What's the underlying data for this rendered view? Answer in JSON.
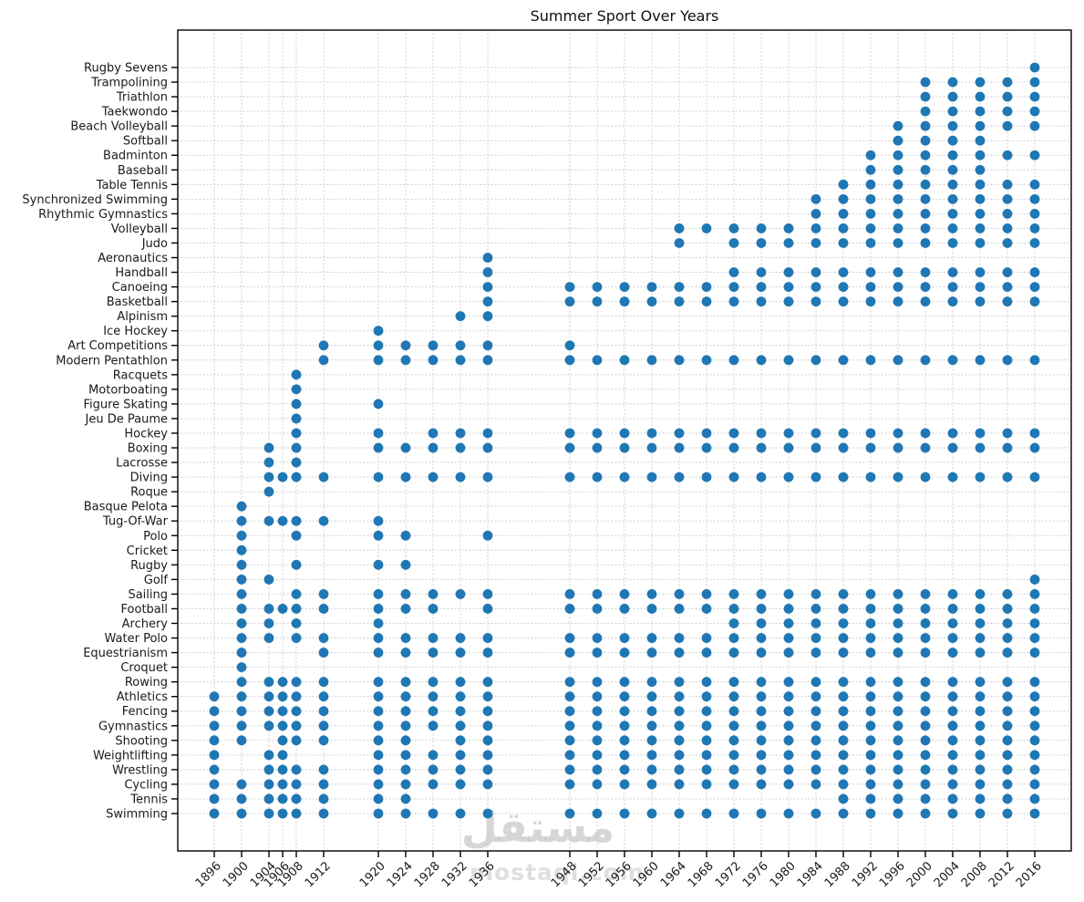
{
  "title": "Summer Sport Over Years",
  "watermark": {
    "arabic": "مستقل",
    "latin": "mostaql.com"
  },
  "colors": {
    "dot": "#1f77b4",
    "grid": "#c8c8c8",
    "axis": "#000000",
    "tick_label": "#1a1a1a",
    "title": "#111111"
  },
  "chart_data": {
    "type": "scatter",
    "title": "Summer Sport Over Years",
    "xlabel": "",
    "ylabel": "",
    "grid": true,
    "x_tick_rotation": 45,
    "x_ticks": [
      1896,
      1900,
      1904,
      1906,
      1908,
      1912,
      1920,
      1924,
      1928,
      1932,
      1936,
      1948,
      1952,
      1956,
      1960,
      1964,
      1968,
      1972,
      1976,
      1980,
      1984,
      1988,
      1992,
      1996,
      2000,
      2004,
      2008,
      2012,
      2016
    ],
    "xlim": [
      1890.7,
      2021.3
    ],
    "sports": [
      {
        "name": "Rugby Sevens",
        "years": [
          2016
        ]
      },
      {
        "name": "Trampolining",
        "years": [
          2000,
          2004,
          2008,
          2012,
          2016
        ]
      },
      {
        "name": "Triathlon",
        "years": [
          2000,
          2004,
          2008,
          2012,
          2016
        ]
      },
      {
        "name": "Taekwondo",
        "years": [
          2000,
          2004,
          2008,
          2012,
          2016
        ]
      },
      {
        "name": "Beach Volleyball",
        "years": [
          1996,
          2000,
          2004,
          2008,
          2012,
          2016
        ]
      },
      {
        "name": "Softball",
        "years": [
          1996,
          2000,
          2004,
          2008
        ]
      },
      {
        "name": "Badminton",
        "years": [
          1992,
          1996,
          2000,
          2004,
          2008,
          2012,
          2016
        ]
      },
      {
        "name": "Baseball",
        "years": [
          1992,
          1996,
          2000,
          2004,
          2008
        ]
      },
      {
        "name": "Table Tennis",
        "years": [
          1988,
          1992,
          1996,
          2000,
          2004,
          2008,
          2012,
          2016
        ]
      },
      {
        "name": "Synchronized Swimming",
        "years": [
          1984,
          1988,
          1992,
          1996,
          2000,
          2004,
          2008,
          2012,
          2016
        ]
      },
      {
        "name": "Rhythmic Gymnastics",
        "years": [
          1984,
          1988,
          1992,
          1996,
          2000,
          2004,
          2008,
          2012,
          2016
        ]
      },
      {
        "name": "Volleyball",
        "years": [
          1964,
          1968,
          1972,
          1976,
          1980,
          1984,
          1988,
          1992,
          1996,
          2000,
          2004,
          2008,
          2012,
          2016
        ]
      },
      {
        "name": "Judo",
        "years": [
          1964,
          1972,
          1976,
          1980,
          1984,
          1988,
          1992,
          1996,
          2000,
          2004,
          2008,
          2012,
          2016
        ]
      },
      {
        "name": "Aeronautics",
        "years": [
          1936
        ]
      },
      {
        "name": "Handball",
        "years": [
          1936,
          1972,
          1976,
          1980,
          1984,
          1988,
          1992,
          1996,
          2000,
          2004,
          2008,
          2012,
          2016
        ]
      },
      {
        "name": "Canoeing",
        "years": [
          1936,
          1948,
          1952,
          1956,
          1960,
          1964,
          1968,
          1972,
          1976,
          1980,
          1984,
          1988,
          1992,
          1996,
          2000,
          2004,
          2008,
          2012,
          2016
        ]
      },
      {
        "name": "Basketball",
        "years": [
          1936,
          1948,
          1952,
          1956,
          1960,
          1964,
          1968,
          1972,
          1976,
          1980,
          1984,
          1988,
          1992,
          1996,
          2000,
          2004,
          2008,
          2012,
          2016
        ]
      },
      {
        "name": "Alpinism",
        "years": [
          1932,
          1936
        ]
      },
      {
        "name": "Ice Hockey",
        "years": [
          1920
        ]
      },
      {
        "name": "Art Competitions",
        "years": [
          1912,
          1920,
          1924,
          1928,
          1932,
          1936,
          1948
        ]
      },
      {
        "name": "Modern Pentathlon",
        "years": [
          1912,
          1920,
          1924,
          1928,
          1932,
          1936,
          1948,
          1952,
          1956,
          1960,
          1964,
          1968,
          1972,
          1976,
          1980,
          1984,
          1988,
          1992,
          1996,
          2000,
          2004,
          2008,
          2012,
          2016
        ]
      },
      {
        "name": "Racquets",
        "years": [
          1908
        ]
      },
      {
        "name": "Motorboating",
        "years": [
          1908
        ]
      },
      {
        "name": "Figure Skating",
        "years": [
          1908,
          1920
        ]
      },
      {
        "name": "Jeu De Paume",
        "years": [
          1908
        ]
      },
      {
        "name": "Hockey",
        "years": [
          1908,
          1920,
          1928,
          1932,
          1936,
          1948,
          1952,
          1956,
          1960,
          1964,
          1968,
          1972,
          1976,
          1980,
          1984,
          1988,
          1992,
          1996,
          2000,
          2004,
          2008,
          2012,
          2016
        ]
      },
      {
        "name": "Boxing",
        "years": [
          1904,
          1908,
          1920,
          1924,
          1928,
          1932,
          1936,
          1948,
          1952,
          1956,
          1960,
          1964,
          1968,
          1972,
          1976,
          1980,
          1984,
          1988,
          1992,
          1996,
          2000,
          2004,
          2008,
          2012,
          2016
        ]
      },
      {
        "name": "Lacrosse",
        "years": [
          1904,
          1908
        ]
      },
      {
        "name": "Diving",
        "years": [
          1904,
          1906,
          1908,
          1912,
          1920,
          1924,
          1928,
          1932,
          1936,
          1948,
          1952,
          1956,
          1960,
          1964,
          1968,
          1972,
          1976,
          1980,
          1984,
          1988,
          1992,
          1996,
          2000,
          2004,
          2008,
          2012,
          2016
        ]
      },
      {
        "name": "Roque",
        "years": [
          1904
        ]
      },
      {
        "name": "Basque Pelota",
        "years": [
          1900
        ]
      },
      {
        "name": "Tug-Of-War",
        "years": [
          1900,
          1904,
          1906,
          1908,
          1912,
          1920
        ]
      },
      {
        "name": "Polo",
        "years": [
          1900,
          1908,
          1920,
          1924,
          1936
        ]
      },
      {
        "name": "Cricket",
        "years": [
          1900
        ]
      },
      {
        "name": "Rugby",
        "years": [
          1900,
          1908,
          1920,
          1924
        ]
      },
      {
        "name": "Golf",
        "years": [
          1900,
          1904,
          2016
        ]
      },
      {
        "name": "Sailing",
        "years": [
          1900,
          1908,
          1912,
          1920,
          1924,
          1928,
          1932,
          1936,
          1948,
          1952,
          1956,
          1960,
          1964,
          1968,
          1972,
          1976,
          1980,
          1984,
          1988,
          1992,
          1996,
          2000,
          2004,
          2008,
          2012,
          2016
        ]
      },
      {
        "name": "Football",
        "years": [
          1900,
          1904,
          1906,
          1908,
          1912,
          1920,
          1924,
          1928,
          1936,
          1948,
          1952,
          1956,
          1960,
          1964,
          1968,
          1972,
          1976,
          1980,
          1984,
          1988,
          1992,
          1996,
          2000,
          2004,
          2008,
          2012,
          2016
        ]
      },
      {
        "name": "Archery",
        "years": [
          1900,
          1904,
          1908,
          1920,
          1972,
          1976,
          1980,
          1984,
          1988,
          1992,
          1996,
          2000,
          2004,
          2008,
          2012,
          2016
        ]
      },
      {
        "name": "Water Polo",
        "years": [
          1900,
          1904,
          1908,
          1912,
          1920,
          1924,
          1928,
          1932,
          1936,
          1948,
          1952,
          1956,
          1960,
          1964,
          1968,
          1972,
          1976,
          1980,
          1984,
          1988,
          1992,
          1996,
          2000,
          2004,
          2008,
          2012,
          2016
        ]
      },
      {
        "name": "Equestrianism",
        "years": [
          1900,
          1912,
          1920,
          1924,
          1928,
          1932,
          1936,
          1948,
          1952,
          1956,
          1960,
          1964,
          1968,
          1972,
          1976,
          1980,
          1984,
          1988,
          1992,
          1996,
          2000,
          2004,
          2008,
          2012,
          2016
        ]
      },
      {
        "name": "Croquet",
        "years": [
          1900
        ]
      },
      {
        "name": "Rowing",
        "years": [
          1900,
          1904,
          1906,
          1908,
          1912,
          1920,
          1924,
          1928,
          1932,
          1936,
          1948,
          1952,
          1956,
          1960,
          1964,
          1968,
          1972,
          1976,
          1980,
          1984,
          1988,
          1992,
          1996,
          2000,
          2004,
          2008,
          2012,
          2016
        ]
      },
      {
        "name": "Athletics",
        "years": [
          1896,
          1900,
          1904,
          1906,
          1908,
          1912,
          1920,
          1924,
          1928,
          1932,
          1936,
          1948,
          1952,
          1956,
          1960,
          1964,
          1968,
          1972,
          1976,
          1980,
          1984,
          1988,
          1992,
          1996,
          2000,
          2004,
          2008,
          2012,
          2016
        ]
      },
      {
        "name": "Fencing",
        "years": [
          1896,
          1900,
          1904,
          1906,
          1908,
          1912,
          1920,
          1924,
          1928,
          1932,
          1936,
          1948,
          1952,
          1956,
          1960,
          1964,
          1968,
          1972,
          1976,
          1980,
          1984,
          1988,
          1992,
          1996,
          2000,
          2004,
          2008,
          2012,
          2016
        ]
      },
      {
        "name": "Gymnastics",
        "years": [
          1896,
          1900,
          1904,
          1906,
          1908,
          1912,
          1920,
          1924,
          1928,
          1932,
          1936,
          1948,
          1952,
          1956,
          1960,
          1964,
          1968,
          1972,
          1976,
          1980,
          1984,
          1988,
          1992,
          1996,
          2000,
          2004,
          2008,
          2012,
          2016
        ]
      },
      {
        "name": "Shooting",
        "years": [
          1896,
          1900,
          1906,
          1908,
          1912,
          1920,
          1924,
          1932,
          1936,
          1948,
          1952,
          1956,
          1960,
          1964,
          1968,
          1972,
          1976,
          1980,
          1984,
          1988,
          1992,
          1996,
          2000,
          2004,
          2008,
          2012,
          2016
        ]
      },
      {
        "name": "Weightlifting",
        "years": [
          1896,
          1904,
          1906,
          1920,
          1924,
          1928,
          1932,
          1936,
          1948,
          1952,
          1956,
          1960,
          1964,
          1968,
          1972,
          1976,
          1980,
          1984,
          1988,
          1992,
          1996,
          2000,
          2004,
          2008,
          2012,
          2016
        ]
      },
      {
        "name": "Wrestling",
        "years": [
          1896,
          1904,
          1906,
          1908,
          1912,
          1920,
          1924,
          1928,
          1932,
          1936,
          1948,
          1952,
          1956,
          1960,
          1964,
          1968,
          1972,
          1976,
          1980,
          1984,
          1988,
          1992,
          1996,
          2000,
          2004,
          2008,
          2012,
          2016
        ]
      },
      {
        "name": "Cycling",
        "years": [
          1896,
          1900,
          1904,
          1906,
          1908,
          1912,
          1920,
          1924,
          1928,
          1932,
          1936,
          1948,
          1952,
          1956,
          1960,
          1964,
          1968,
          1972,
          1976,
          1980,
          1984,
          1988,
          1992,
          1996,
          2000,
          2004,
          2008,
          2012,
          2016
        ]
      },
      {
        "name": "Tennis",
        "years": [
          1896,
          1900,
          1904,
          1906,
          1908,
          1912,
          1920,
          1924,
          1988,
          1992,
          1996,
          2000,
          2004,
          2008,
          2012,
          2016
        ]
      },
      {
        "name": "Swimming",
        "years": [
          1896,
          1900,
          1904,
          1906,
          1908,
          1912,
          1920,
          1924,
          1928,
          1932,
          1936,
          1948,
          1952,
          1956,
          1960,
          1964,
          1968,
          1972,
          1976,
          1980,
          1984,
          1988,
          1992,
          1996,
          2000,
          2004,
          2008,
          2012,
          2016
        ]
      }
    ]
  }
}
